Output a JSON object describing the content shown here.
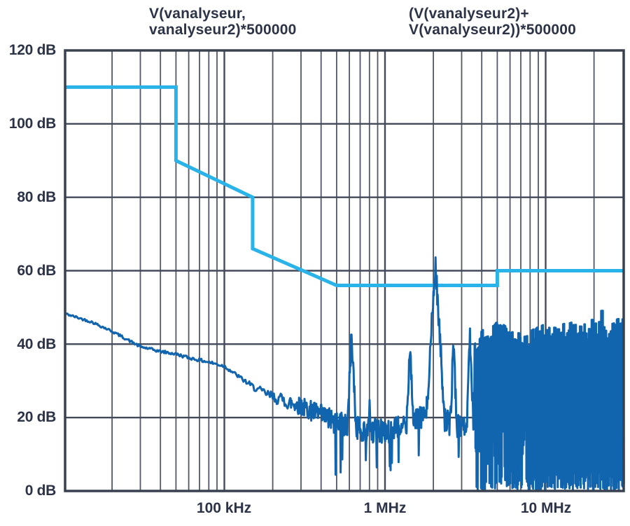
{
  "chart_data": {
    "type": "line",
    "titles": [
      {
        "lines": [
          "V(vanalyseur,",
          "vanalyseur2)*500000"
        ]
      },
      {
        "lines": [
          "(V(vanalyseur2)+",
          "V(vanalyseur2))*500000"
        ]
      }
    ],
    "x_axis": {
      "scale": "log",
      "unit": "MHz",
      "min": 0.0102,
      "max": 30.6,
      "tick_labels": [
        "100 kHz",
        "1 MHz",
        "10 MHz"
      ],
      "tick_values_mhz": [
        0.1,
        1,
        10
      ],
      "grid": "log-minor-and-decade"
    },
    "y_axis": {
      "unit": "dB",
      "min": 0,
      "max": 120,
      "step": 20,
      "tick_labels": [
        "120 dB",
        "100 dB",
        "80 dB",
        "60 dB",
        "40 dB",
        "20 dB",
        "0 dB"
      ]
    },
    "colors": {
      "limit_line": "#29b3e8",
      "spectrum": "#1164ae",
      "grid_minor": "#525866",
      "grid_major": "#434a5a",
      "frame": "#39404f",
      "text": "#2c3347",
      "background": "#ffffff"
    },
    "series": [
      {
        "name": "limit-line",
        "label": "V(vanalyseur,vanalyseur2)*500000",
        "type": "step-line",
        "color": "#29b3e8",
        "stroke_width": 5,
        "points_mhz_db": [
          [
            0.0102,
            110
          ],
          [
            0.05,
            110
          ],
          [
            0.05,
            90
          ],
          [
            0.15,
            80
          ],
          [
            0.15,
            66
          ],
          [
            0.5,
            56
          ],
          [
            5,
            56
          ],
          [
            5,
            60
          ],
          [
            30.6,
            60
          ]
        ]
      },
      {
        "name": "spectrum",
        "label": "(V(vanalyseur2)+V(vanalyseur2))*500000",
        "type": "noisy-spectrum",
        "color": "#1164ae",
        "stroke_width": 3,
        "baseline_anchors_mhz_db": [
          [
            0.0102,
            48.3
          ],
          [
            0.015,
            46
          ],
          [
            0.02,
            43.5
          ],
          [
            0.03,
            39.3
          ],
          [
            0.04,
            38
          ],
          [
            0.05,
            37.3
          ],
          [
            0.06,
            36.3
          ],
          [
            0.08,
            35.1
          ],
          [
            0.1,
            34
          ],
          [
            0.12,
            31.5
          ],
          [
            0.15,
            28.4
          ],
          [
            0.2,
            25.6
          ],
          [
            0.3,
            23.1
          ],
          [
            0.4,
            20.6
          ],
          [
            0.5,
            18.5
          ],
          [
            0.65,
            17
          ],
          [
            0.8,
            16.5
          ],
          [
            1.0,
            16.3
          ],
          [
            1.2,
            17
          ],
          [
            1.45,
            18.5
          ],
          [
            1.7,
            20
          ],
          [
            1.9,
            21
          ],
          [
            2.1,
            21
          ],
          [
            2.4,
            19
          ],
          [
            2.8,
            17.5
          ],
          [
            3.2,
            17
          ],
          [
            3.6,
            16
          ]
        ],
        "peaks_mhz_db": [
          {
            "f": 0.62,
            "dB": 42.8,
            "hw": 0.045
          },
          {
            "f": 0.8,
            "dB": 25.5,
            "hw": 0.02
          },
          {
            "f": 1.43,
            "dB": 40.4,
            "hw": 0.04
          },
          {
            "f": 2.06,
            "dB": 61.8,
            "hw": 0.085
          },
          {
            "f": 2.67,
            "dB": 41.3,
            "hw": 0.035
          },
          {
            "f": 3.38,
            "dB": 42.5,
            "hw": 0.035
          }
        ],
        "noise": {
          "amp_anchors": [
            [
              0.0102,
              0.3
            ],
            [
              0.12,
              0.5
            ],
            [
              0.18,
              1.2
            ],
            [
              0.3,
              2.5
            ],
            [
              0.45,
              3.3
            ],
            [
              3.6,
              3.3
            ]
          ],
          "dip_from": 0.45,
          "dip_chance": 0.05,
          "dip_db": [
            2,
            11
          ],
          "dense": {
            "from": 3.6,
            "solid_from": 7.5,
            "gap_to": 8,
            "gap_chance": 0.09,
            "deep_bottom_chance": 0.38,
            "top_anchors": [
              [
                3.6,
                40
              ],
              [
                4.2,
                43
              ],
              [
                5,
                44
              ],
              [
                6,
                41.5
              ],
              [
                7,
                41
              ],
              [
                8,
                42
              ],
              [
                10,
                44.5
              ],
              [
                12,
                42.5
              ],
              [
                15,
                44
              ],
              [
                20,
                43.5
              ],
              [
                25,
                44
              ],
              [
                30.6,
                45
              ]
            ],
            "top_jitter": 2.5,
            "spike_chance": 0.05,
            "spike_db": 3
          }
        }
      }
    ]
  }
}
